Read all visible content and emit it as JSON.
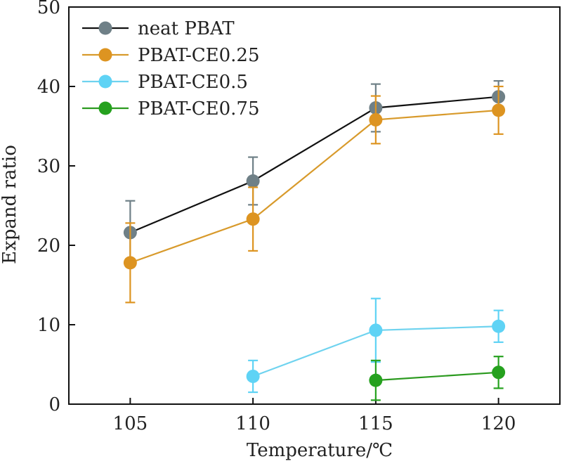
{
  "chart_data": {
    "type": "line",
    "xlabel": "Temperature/℃",
    "ylabel": "Expand ratio",
    "x_ticks": [
      "105",
      "110",
      "115",
      "120"
    ],
    "y_ticks": [
      "0",
      "10",
      "20",
      "30",
      "40",
      "50"
    ],
    "xlim": [
      102.5,
      122.5
    ],
    "ylim": [
      0,
      50
    ],
    "grid": false,
    "legend_position": "top-left",
    "series": [
      {
        "name": "neat PBAT",
        "line_color": "#111111",
        "marker_color": "#6f8087",
        "points": [
          {
            "x": 105,
            "y": 21.6,
            "err": 4.0
          },
          {
            "x": 110,
            "y": 28.1,
            "err": 3.0
          },
          {
            "x": 115,
            "y": 37.3,
            "err": 3.0
          },
          {
            "x": 120,
            "y": 38.7,
            "err": 2.0
          }
        ]
      },
      {
        "name": "PBAT-CE0.25",
        "line_color": "#d89a2b",
        "marker_color": "#dd9421",
        "points": [
          {
            "x": 105,
            "y": 17.8,
            "err": 5.0
          },
          {
            "x": 110,
            "y": 23.3,
            "err": 4.0
          },
          {
            "x": 115,
            "y": 35.8,
            "err": 3.0
          },
          {
            "x": 120,
            "y": 37.0,
            "err": 3.0
          }
        ]
      },
      {
        "name": "PBAT-CE0.5",
        "line_color": "#6fd3ef",
        "marker_color": "#5fd3f5",
        "points": [
          {
            "x": 110,
            "y": 3.5,
            "err": 2.0
          },
          {
            "x": 115,
            "y": 9.3,
            "err": 4.0
          },
          {
            "x": 120,
            "y": 9.8,
            "err": 2.0
          }
        ]
      },
      {
        "name": "PBAT-CE0.75",
        "line_color": "#2b9a1f",
        "marker_color": "#25a11e",
        "points": [
          {
            "x": 115,
            "y": 3.0,
            "err": 2.5
          },
          {
            "x": 120,
            "y": 4.0,
            "err": 2.0
          }
        ]
      }
    ]
  }
}
